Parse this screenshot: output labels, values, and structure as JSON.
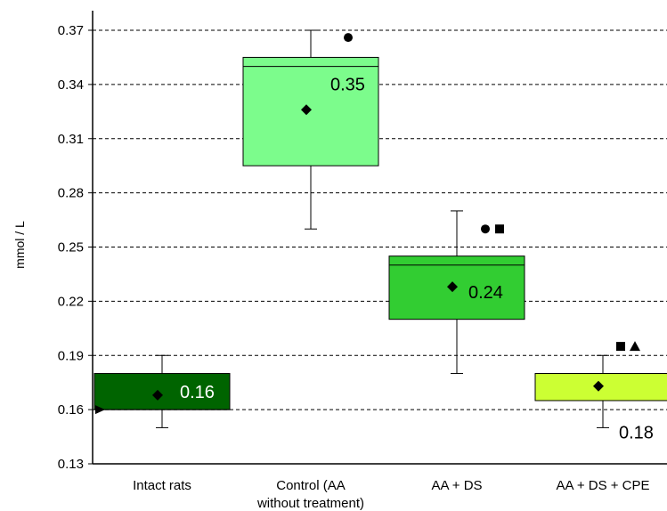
{
  "chart_data": {
    "type": "box",
    "ylabel": "mmol / L",
    "ylim": [
      0.13,
      0.38
    ],
    "yticks": [
      "0.13",
      "0.16",
      "0.19",
      "0.22",
      "0.25",
      "0.28",
      "0.31",
      "0.34",
      "0.37"
    ],
    "grid": true,
    "categories": [
      [
        "Intact rats"
      ],
      [
        "Control (AA",
        "without treatment)"
      ],
      [
        "AA + DS"
      ],
      [
        "AA + DS + CPE"
      ]
    ],
    "boxes": [
      {
        "whisker_low": 0.15,
        "q1": 0.16,
        "median": 0.16,
        "q3": 0.18,
        "whisker_high": 0.19,
        "mean": 0.168,
        "label": "0.16",
        "color": "#006400",
        "label_color": "#ffffff",
        "markers": []
      },
      {
        "whisker_low": 0.26,
        "q1": 0.295,
        "median": 0.35,
        "q3": 0.355,
        "whisker_high": 0.37,
        "mean": 0.326,
        "label": "0.35",
        "color": "#7CFC8C",
        "label_color": "#000000",
        "markers": [
          {
            "y": 0.366,
            "symbol": "circle"
          }
        ]
      },
      {
        "whisker_low": 0.18,
        "q1": 0.21,
        "median": 0.24,
        "q3": 0.245,
        "whisker_high": 0.27,
        "mean": 0.228,
        "label": "0.24",
        "color": "#32CD32",
        "label_color": "#000000",
        "markers": [
          {
            "y": 0.26,
            "symbol": "circle"
          },
          {
            "y": 0.26,
            "symbol": "square"
          }
        ]
      },
      {
        "whisker_low": 0.15,
        "q1": 0.165,
        "median": 0.18,
        "q3": 0.18,
        "whisker_high": 0.19,
        "mean": 0.173,
        "label": "0.18",
        "color": "#CCFF33",
        "label_color": "#000000",
        "markers": [
          {
            "y": 0.195,
            "symbol": "square"
          },
          {
            "y": 0.195,
            "symbol": "triangle"
          }
        ]
      }
    ],
    "mean_marker": "diamond",
    "axis_marker": "triangle-right",
    "axis_marker_value": 0.16
  }
}
